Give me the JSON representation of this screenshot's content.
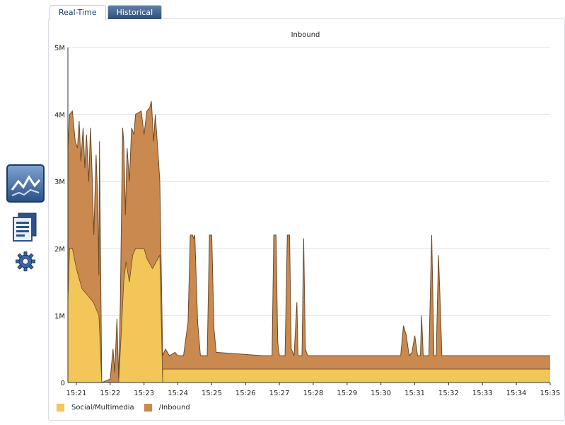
{
  "tabs": [
    {
      "label": "Real-Time",
      "active": true
    },
    {
      "label": "Historical",
      "active": false
    }
  ],
  "sidebar": {
    "icons": [
      "line-chart-icon",
      "report-document-icon",
      "gear-icon"
    ]
  },
  "chart_data": {
    "type": "area",
    "stacked": true,
    "title": "Inbound",
    "xlabel": "",
    "ylabel": "",
    "x_range": [
      "15:20:45",
      "15:35:00"
    ],
    "x_ticks": [
      "15:21",
      "15:22",
      "15:23",
      "15:24",
      "15:25",
      "15:26",
      "15:27",
      "15:28",
      "15:29",
      "15:30",
      "15:31",
      "15:32",
      "15:33",
      "15:34",
      "15:35"
    ],
    "ylim": [
      0,
      5000000
    ],
    "y_ticks": [
      {
        "value": 0,
        "label": "0"
      },
      {
        "value": 1000000,
        "label": "1M"
      },
      {
        "value": 2000000,
        "label": "2M"
      },
      {
        "value": 3000000,
        "label": "3M"
      },
      {
        "value": 4000000,
        "label": "4M"
      },
      {
        "value": 5000000,
        "label": "5M"
      }
    ],
    "grid": true,
    "legend_position": "bottom-left",
    "series": [
      {
        "name": "Social/Multimedia",
        "color": "#f3c65a",
        "points": [
          [
            "15:20:45",
            1200000
          ],
          [
            "15:20:48",
            2000000
          ],
          [
            "15:20:53",
            2000000
          ],
          [
            "15:21:00",
            1700000
          ],
          [
            "15:21:10",
            1400000
          ],
          [
            "15:21:20",
            1300000
          ],
          [
            "15:21:30",
            1200000
          ],
          [
            "15:21:40",
            1000000
          ],
          [
            "15:21:45",
            0
          ],
          [
            "15:22:15",
            0
          ],
          [
            "15:22:20",
            800000
          ],
          [
            "15:22:24",
            1500000
          ],
          [
            "15:22:28",
            1800000
          ],
          [
            "15:22:34",
            1500000
          ],
          [
            "15:22:40",
            1900000
          ],
          [
            "15:22:45",
            2000000
          ],
          [
            "15:23:00",
            2000000
          ],
          [
            "15:23:05",
            1850000
          ],
          [
            "15:23:15",
            1700000
          ],
          [
            "15:23:28",
            1900000
          ],
          [
            "15:23:33",
            0
          ],
          [
            "15:23:33",
            200000
          ],
          [
            "15:35:00",
            200000
          ]
        ]
      },
      {
        "name": "/Inbound",
        "color": "#c9894f",
        "total_points": [
          [
            "15:20:45",
            3500000
          ],
          [
            "15:20:48",
            4000000
          ],
          [
            "15:20:53",
            4050000
          ],
          [
            "15:20:58",
            3600000
          ],
          [
            "15:21:02",
            3500000
          ],
          [
            "15:21:05",
            3900000
          ],
          [
            "15:21:08",
            3300000
          ],
          [
            "15:21:12",
            3800000
          ],
          [
            "15:21:15",
            3200000
          ],
          [
            "15:21:18",
            3700000
          ],
          [
            "15:21:22",
            3000000
          ],
          [
            "15:21:25",
            3800000
          ],
          [
            "15:21:28",
            3100000
          ],
          [
            "15:21:31",
            2200000
          ],
          [
            "15:21:35",
            3400000
          ],
          [
            "15:21:38",
            2700000
          ],
          [
            "15:21:40",
            1600000
          ],
          [
            "15:21:41",
            3600000
          ],
          [
            "15:21:45",
            0
          ],
          [
            "15:22:00",
            50000
          ],
          [
            "15:22:05",
            500000
          ],
          [
            "15:22:08",
            150000
          ],
          [
            "15:22:12",
            950000
          ],
          [
            "15:22:15",
            50000
          ],
          [
            "15:22:18",
            1200000
          ],
          [
            "15:22:22",
            3800000
          ],
          [
            "15:22:24",
            3600000
          ],
          [
            "15:22:27",
            2500000
          ],
          [
            "15:22:30",
            3500000
          ],
          [
            "15:22:34",
            3000000
          ],
          [
            "15:22:38",
            3800000
          ],
          [
            "15:22:42",
            3700000
          ],
          [
            "15:22:45",
            4000000
          ],
          [
            "15:22:55",
            4050000
          ],
          [
            "15:23:00",
            3700000
          ],
          [
            "15:23:05",
            4050000
          ],
          [
            "15:23:10",
            4100000
          ],
          [
            "15:23:13",
            4200000
          ],
          [
            "15:23:17",
            3600000
          ],
          [
            "15:23:20",
            4000000
          ],
          [
            "15:23:25",
            3400000
          ],
          [
            "15:23:28",
            3000000
          ],
          [
            "15:23:33",
            400000
          ],
          [
            "15:23:38",
            500000
          ],
          [
            "15:23:45",
            400000
          ],
          [
            "15:23:55",
            450000
          ],
          [
            "15:24:00",
            400000
          ],
          [
            "15:24:10",
            400000
          ],
          [
            "15:24:18",
            900000
          ],
          [
            "15:24:22",
            2200000
          ],
          [
            "15:24:26",
            2200000
          ],
          [
            "15:24:28",
            2150000
          ],
          [
            "15:24:30",
            2200000
          ],
          [
            "15:24:35",
            900000
          ],
          [
            "15:24:40",
            400000
          ],
          [
            "15:24:52",
            400000
          ],
          [
            "15:24:56",
            2200000
          ],
          [
            "15:25:00",
            2200000
          ],
          [
            "15:25:04",
            800000
          ],
          [
            "15:25:08",
            450000
          ],
          [
            "15:26:30",
            400000
          ],
          [
            "15:26:47",
            400000
          ],
          [
            "15:26:50",
            2200000
          ],
          [
            "15:26:54",
            2200000
          ],
          [
            "15:26:57",
            600000
          ],
          [
            "15:27:00",
            400000
          ],
          [
            "15:27:10",
            400000
          ],
          [
            "15:27:14",
            2200000
          ],
          [
            "15:27:18",
            2200000
          ],
          [
            "15:27:21",
            500000
          ],
          [
            "15:27:26",
            400000
          ],
          [
            "15:27:31",
            1200000
          ],
          [
            "15:27:33",
            400000
          ],
          [
            "15:27:40",
            400000
          ],
          [
            "15:27:43",
            2150000
          ],
          [
            "15:27:46",
            500000
          ],
          [
            "15:27:50",
            400000
          ],
          [
            "15:29:00",
            400000
          ],
          [
            "15:29:30",
            400000
          ],
          [
            "15:30:00",
            400000
          ],
          [
            "15:30:35",
            400000
          ],
          [
            "15:30:40",
            850000
          ],
          [
            "15:30:45",
            700000
          ],
          [
            "15:30:50",
            400000
          ],
          [
            "15:30:55",
            450000
          ],
          [
            "15:31:00",
            700000
          ],
          [
            "15:31:05",
            400000
          ],
          [
            "15:31:10",
            400000
          ],
          [
            "15:31:12",
            1000000
          ],
          [
            "15:31:15",
            400000
          ],
          [
            "15:31:25",
            400000
          ],
          [
            "15:31:30",
            2200000
          ],
          [
            "15:31:34",
            400000
          ],
          [
            "15:31:38",
            400000
          ],
          [
            "15:31:42",
            1900000
          ],
          [
            "15:31:45",
            1200000
          ],
          [
            "15:31:48",
            400000
          ],
          [
            "15:32:00",
            400000
          ],
          [
            "15:33:00",
            400000
          ],
          [
            "15:34:00",
            400000
          ],
          [
            "15:35:00",
            400000
          ]
        ]
      }
    ]
  }
}
